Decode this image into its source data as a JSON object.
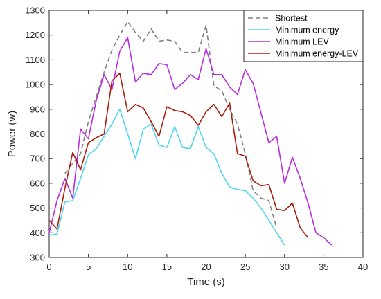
{
  "chart_data": {
    "type": "line",
    "title": "",
    "xlabel": "Time (s)",
    "ylabel": "Power (w)",
    "xlim": [
      0,
      40
    ],
    "ylim": [
      300,
      1300
    ],
    "xticks": [
      0,
      5,
      10,
      15,
      20,
      25,
      30,
      35,
      40
    ],
    "yticks": [
      300,
      400,
      500,
      600,
      700,
      800,
      900,
      1000,
      1100,
      1200,
      1300
    ],
    "grid": false,
    "legend_position": "top-right",
    "series": [
      {
        "name": "Shortest",
        "color": "#808080",
        "dash": "dashed",
        "x": [
          2,
          3,
          4,
          5,
          6,
          7,
          8,
          9,
          10,
          11,
          12,
          13,
          14,
          15,
          16,
          17,
          18,
          19,
          20,
          21,
          22,
          23,
          24,
          25,
          26,
          27,
          28,
          29
        ],
        "y": [
          640,
          680,
          720,
          850,
          950,
          1050,
          1140,
          1200,
          1255,
          1210,
          1175,
          1225,
          1175,
          1180,
          1175,
          1130,
          1130,
          1130,
          1240,
          995,
          975,
          900,
          840,
          720,
          570,
          540,
          530,
          420
        ]
      },
      {
        "name": "Minimum energy",
        "color": "#4dd6f0",
        "dash": "solid",
        "x": [
          0,
          1,
          2,
          3,
          4,
          5,
          6,
          7,
          8,
          9,
          10,
          11,
          12,
          13,
          14,
          15,
          16,
          17,
          18,
          19,
          20,
          21,
          22,
          23,
          24,
          25,
          26,
          27,
          28,
          29,
          30
        ],
        "y": [
          390,
          395,
          525,
          530,
          620,
          715,
          740,
          790,
          840,
          900,
          800,
          700,
          820,
          840,
          755,
          745,
          830,
          745,
          740,
          830,
          745,
          720,
          640,
          585,
          575,
          570,
          540,
          500,
          450,
          400,
          350
        ]
      },
      {
        "name": "Minimum LEV",
        "color": "#b82be0",
        "dash": "solid",
        "x": [
          0,
          1,
          2,
          3,
          4,
          5,
          6,
          7,
          8,
          9,
          10,
          11,
          12,
          13,
          14,
          15,
          16,
          17,
          18,
          19,
          20,
          21,
          22,
          23,
          24,
          25,
          26,
          27,
          28,
          29,
          30,
          31,
          32,
          33,
          34,
          35,
          36
        ],
        "y": [
          400,
          530,
          620,
          540,
          820,
          780,
          935,
          1040,
          980,
          1135,
          1190,
          1010,
          1045,
          1040,
          1085,
          1080,
          980,
          1005,
          1040,
          1020,
          1145,
          1040,
          1040,
          990,
          960,
          1060,
          1005,
          885,
          765,
          790,
          600,
          705,
          620,
          520,
          400,
          380,
          350
        ]
      },
      {
        "name": "Minimum energy-LEV",
        "color": "#a81d0a",
        "dash": "solid",
        "x": [
          0,
          1,
          2,
          3,
          4,
          5,
          6,
          7,
          8,
          9,
          10,
          11,
          12,
          13,
          14,
          15,
          16,
          17,
          18,
          19,
          20,
          21,
          22,
          23,
          24,
          25,
          26,
          27,
          28,
          29,
          30,
          31,
          32,
          33
        ],
        "y": [
          450,
          415,
          580,
          725,
          655,
          765,
          785,
          800,
          1015,
          1045,
          890,
          920,
          905,
          850,
          790,
          910,
          895,
          890,
          875,
          835,
          890,
          920,
          870,
          925,
          720,
          710,
          610,
          590,
          595,
          495,
          490,
          520,
          420,
          380
        ]
      }
    ]
  }
}
